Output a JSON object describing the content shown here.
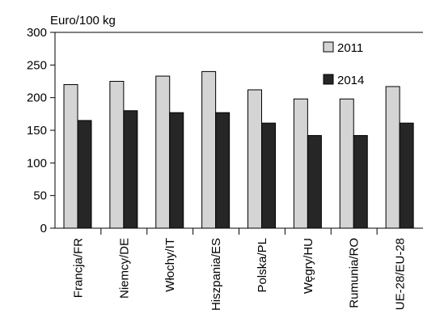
{
  "chart_data": {
    "type": "bar",
    "unit_label": "Euro/100 kg",
    "categories": [
      "Francja/FR",
      "Niemcy/DE",
      "Włochy/IT",
      "Hiszpania/ES",
      "Polska/PL",
      "Węgry/HU",
      "Rumunia/RO",
      "UE-28/EU-28"
    ],
    "series": [
      {
        "name": "2011",
        "color": "#d4d4d4",
        "values": [
          220,
          225,
          233,
          240,
          212,
          198,
          198,
          217
        ]
      },
      {
        "name": "2014",
        "color": "#262626",
        "values": [
          165,
          180,
          177,
          177,
          161,
          142,
          142,
          161
        ]
      }
    ],
    "ylim": [
      0,
      300
    ],
    "yticks": [
      0,
      50,
      100,
      150,
      200,
      250,
      300
    ],
    "grid": false,
    "legend_position": "top-right"
  }
}
